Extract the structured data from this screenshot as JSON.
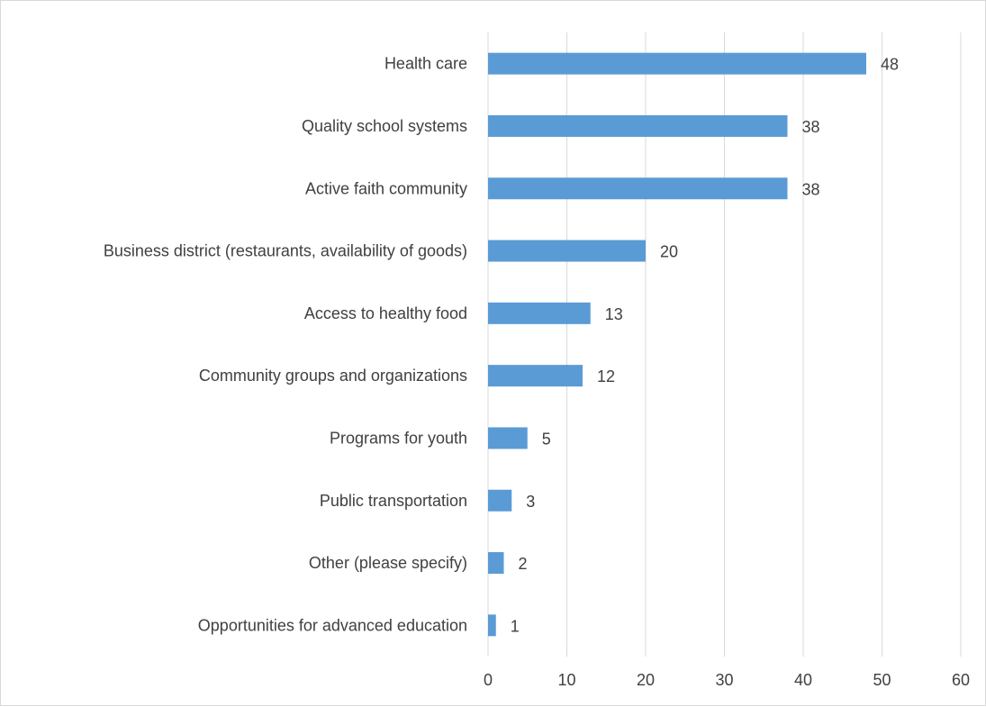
{
  "chart_data": {
    "type": "bar",
    "orientation": "horizontal",
    "categories": [
      "Health care",
      "Quality school systems",
      "Active faith community",
      "Business district (restaurants, availability of goods)",
      "Access to healthy food",
      "Community groups and organizations",
      "Programs for youth",
      "Public transportation",
      "Other (please specify)",
      "Opportunities for advanced education"
    ],
    "values": [
      48,
      38,
      38,
      20,
      13,
      12,
      5,
      3,
      2,
      1
    ],
    "data_labels": [
      "48",
      "38",
      "38",
      "20",
      "13",
      "12",
      "5",
      "3",
      "2",
      "1"
    ],
    "xticks": [
      "0",
      "10",
      "20",
      "30",
      "40",
      "50",
      "60"
    ],
    "xlim": [
      0,
      60
    ],
    "grid": true,
    "legend": "none",
    "bar_color": "#5b9bd5",
    "grid_color": "#d9d9d9",
    "text_color": "#404040"
  }
}
